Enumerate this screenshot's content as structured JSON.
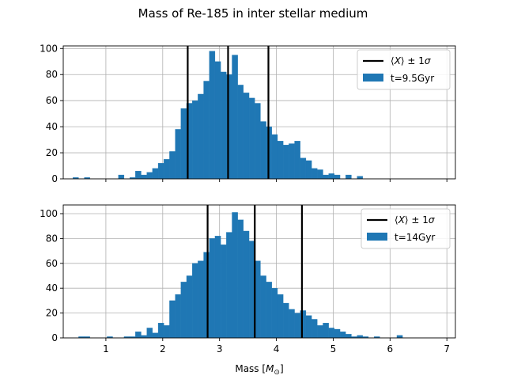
{
  "figure": {
    "title": "Mass of Re-185 in inter stellar medium",
    "xlabel": "Mass [$M_\\odot$]",
    "xlabel_main": "Mass [",
    "xlabel_sym": "M",
    "xlabel_sub": "⊙",
    "xlabel_end": "]"
  },
  "chart_data": [
    {
      "type": "bar",
      "title": "Mass of Re-185 in inter stellar medium",
      "xlabel": "",
      "ylabel": "",
      "xlim": [
        0.25,
        7.15
      ],
      "ylim": [
        0,
        102
      ],
      "yticks": [
        0,
        20,
        40,
        60,
        80,
        100
      ],
      "xticks": [
        1,
        2,
        3,
        4,
        5,
        6,
        7
      ],
      "show_xtick_labels": false,
      "grid": true,
      "legend_position": "upper right",
      "bar_color": "#1f77b4",
      "line_color": "#000000",
      "series": [
        {
          "name": "t=9.5Gyr",
          "bin_edges_start": 0.42,
          "bin_width": 0.1,
          "values": [
            1,
            0,
            1,
            0,
            0,
            0,
            0,
            0,
            3,
            0,
            1,
            6,
            3,
            5,
            8,
            12,
            15,
            21,
            38,
            54,
            58,
            60,
            65,
            75,
            98,
            90,
            82,
            80,
            95,
            72,
            66,
            62,
            58,
            44,
            40,
            34,
            29,
            26,
            27,
            29,
            16,
            14,
            8,
            7,
            3,
            4,
            3,
            0,
            3,
            0,
            2
          ]
        }
      ],
      "vlines": {
        "label": "⟨X⟩ ± 1σ",
        "x": [
          2.44,
          3.15,
          3.86
        ]
      },
      "legend": {
        "line_label_pre": "⟨",
        "line_label_sym": "X",
        "line_label_post": "⟩ ± 1",
        "line_label_sigma": "σ",
        "bar_label": "t=9.5Gyr"
      }
    },
    {
      "type": "bar",
      "title": "",
      "xlabel": "Mass [M⊙]",
      "ylabel": "",
      "xlim": [
        0.25,
        7.15
      ],
      "ylim": [
        0,
        107
      ],
      "yticks": [
        0,
        20,
        40,
        60,
        80,
        100
      ],
      "xticks": [
        1,
        2,
        3,
        4,
        5,
        6,
        7
      ],
      "xtick_labels": [
        "1",
        "2",
        "3",
        "4",
        "5",
        "6",
        "7"
      ],
      "show_xtick_labels": true,
      "grid": true,
      "legend_position": "upper right",
      "bar_color": "#1f77b4",
      "line_color": "#000000",
      "series": [
        {
          "name": "t=14Gyr",
          "bin_edges_start": 0.52,
          "bin_width": 0.1,
          "values": [
            1,
            1,
            0,
            0,
            0,
            1,
            0,
            0,
            1,
            1,
            5,
            2,
            8,
            4,
            12,
            10,
            30,
            35,
            45,
            50,
            60,
            62,
            69,
            80,
            82,
            75,
            85,
            101,
            95,
            86,
            78,
            62,
            50,
            45,
            40,
            35,
            28,
            23,
            20,
            22,
            18,
            15,
            10,
            12,
            8,
            7,
            5,
            3,
            1,
            2,
            1,
            0,
            1,
            0,
            0,
            0,
            2,
            0
          ]
        }
      ],
      "vlines": {
        "label": "⟨X⟩ ± 1σ",
        "x": [
          2.79,
          3.62,
          4.45
        ]
      },
      "legend": {
        "line_label_pre": "⟨",
        "line_label_sym": "X",
        "line_label_post": "⟩ ± 1",
        "line_label_sigma": "σ",
        "bar_label": "t=14Gyr"
      }
    }
  ]
}
